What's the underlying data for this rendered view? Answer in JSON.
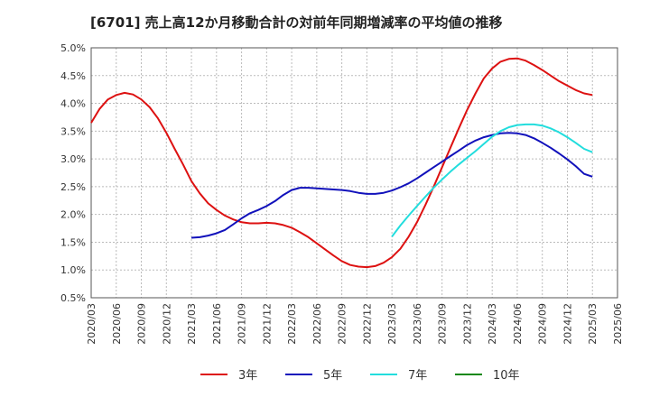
{
  "chart_data": {
    "type": "line",
    "title": "[6701]  売上高12か月移動合計の対前年同期増減率の平均値の推移",
    "xlabel": "",
    "ylabel": "",
    "ylim": [
      0.5,
      5.0
    ],
    "yticks": [
      "0.5%",
      "1.0%",
      "1.5%",
      "2.0%",
      "2.5%",
      "3.0%",
      "3.5%",
      "4.0%",
      "4.5%",
      "5.0%"
    ],
    "xticks": [
      "2020/03",
      "2020/06",
      "2020/09",
      "2020/12",
      "2021/03",
      "2021/06",
      "2021/09",
      "2021/12",
      "2022/03",
      "2022/06",
      "2022/09",
      "2022/12",
      "2023/03",
      "2023/06",
      "2023/09",
      "2023/12",
      "2024/03",
      "2024/06",
      "2024/09",
      "2024/12",
      "2025/03",
      "2025/06"
    ],
    "grid": true,
    "legend_position": "bottom",
    "series": [
      {
        "name": "3年",
        "color": "#dd1111",
        "points": [
          [
            "2020/03",
            3.65
          ],
          [
            "2020/04",
            3.9
          ],
          [
            "2020/05",
            4.07
          ],
          [
            "2020/06",
            4.15
          ],
          [
            "2020/07",
            4.19
          ],
          [
            "2020/08",
            4.16
          ],
          [
            "2020/09",
            4.07
          ],
          [
            "2020/10",
            3.93
          ],
          [
            "2020/11",
            3.73
          ],
          [
            "2020/12",
            3.47
          ],
          [
            "2021/01",
            3.18
          ],
          [
            "2021/02",
            2.9
          ],
          [
            "2021/03",
            2.6
          ],
          [
            "2021/04",
            2.38
          ],
          [
            "2021/05",
            2.2
          ],
          [
            "2021/06",
            2.08
          ],
          [
            "2021/07",
            1.98
          ],
          [
            "2021/08",
            1.91
          ],
          [
            "2021/09",
            1.86
          ],
          [
            "2021/10",
            1.84
          ],
          [
            "2021/11",
            1.84
          ],
          [
            "2021/12",
            1.85
          ],
          [
            "2022/01",
            1.84
          ],
          [
            "2022/02",
            1.81
          ],
          [
            "2022/03",
            1.76
          ],
          [
            "2022/04",
            1.68
          ],
          [
            "2022/05",
            1.59
          ],
          [
            "2022/06",
            1.48
          ],
          [
            "2022/07",
            1.37
          ],
          [
            "2022/08",
            1.26
          ],
          [
            "2022/09",
            1.16
          ],
          [
            "2022/10",
            1.09
          ],
          [
            "2022/11",
            1.06
          ],
          [
            "2022/12",
            1.05
          ],
          [
            "2023/01",
            1.07
          ],
          [
            "2023/02",
            1.13
          ],
          [
            "2023/03",
            1.23
          ],
          [
            "2023/04",
            1.38
          ],
          [
            "2023/05",
            1.6
          ],
          [
            "2023/06",
            1.86
          ],
          [
            "2023/07",
            2.17
          ],
          [
            "2023/08",
            2.5
          ],
          [
            "2023/09",
            2.85
          ],
          [
            "2023/10",
            3.2
          ],
          [
            "2023/11",
            3.55
          ],
          [
            "2023/12",
            3.88
          ],
          [
            "2024/01",
            4.18
          ],
          [
            "2024/02",
            4.45
          ],
          [
            "2024/03",
            4.63
          ],
          [
            "2024/04",
            4.75
          ],
          [
            "2024/05",
            4.8
          ],
          [
            "2024/06",
            4.81
          ],
          [
            "2024/07",
            4.77
          ],
          [
            "2024/08",
            4.69
          ],
          [
            "2024/09",
            4.6
          ],
          [
            "2024/10",
            4.5
          ],
          [
            "2024/11",
            4.4
          ],
          [
            "2024/12",
            4.32
          ],
          [
            "2025/01",
            4.24
          ],
          [
            "2025/02",
            4.18
          ],
          [
            "2025/03",
            4.15
          ]
        ]
      },
      {
        "name": "5年",
        "color": "#1111bb",
        "points": [
          [
            "2021/03",
            1.58
          ],
          [
            "2021/04",
            1.59
          ],
          [
            "2021/05",
            1.62
          ],
          [
            "2021/06",
            1.66
          ],
          [
            "2021/07",
            1.72
          ],
          [
            "2021/08",
            1.82
          ],
          [
            "2021/09",
            1.93
          ],
          [
            "2021/10",
            2.02
          ],
          [
            "2021/11",
            2.08
          ],
          [
            "2021/12",
            2.15
          ],
          [
            "2022/01",
            2.24
          ],
          [
            "2022/02",
            2.35
          ],
          [
            "2022/03",
            2.44
          ],
          [
            "2022/04",
            2.48
          ],
          [
            "2022/05",
            2.48
          ],
          [
            "2022/06",
            2.47
          ],
          [
            "2022/07",
            2.46
          ],
          [
            "2022/08",
            2.45
          ],
          [
            "2022/09",
            2.44
          ],
          [
            "2022/10",
            2.42
          ],
          [
            "2022/11",
            2.39
          ],
          [
            "2022/12",
            2.37
          ],
          [
            "2023/01",
            2.37
          ],
          [
            "2023/02",
            2.39
          ],
          [
            "2023/03",
            2.43
          ],
          [
            "2023/04",
            2.49
          ],
          [
            "2023/05",
            2.56
          ],
          [
            "2023/06",
            2.65
          ],
          [
            "2023/07",
            2.75
          ],
          [
            "2023/08",
            2.85
          ],
          [
            "2023/09",
            2.95
          ],
          [
            "2023/10",
            3.05
          ],
          [
            "2023/11",
            3.15
          ],
          [
            "2023/12",
            3.25
          ],
          [
            "2024/01",
            3.33
          ],
          [
            "2024/02",
            3.39
          ],
          [
            "2024/03",
            3.43
          ],
          [
            "2024/04",
            3.46
          ],
          [
            "2024/05",
            3.47
          ],
          [
            "2024/06",
            3.46
          ],
          [
            "2024/07",
            3.43
          ],
          [
            "2024/08",
            3.37
          ],
          [
            "2024/09",
            3.29
          ],
          [
            "2024/10",
            3.2
          ],
          [
            "2024/11",
            3.1
          ],
          [
            "2024/12",
            2.99
          ],
          [
            "2025/01",
            2.87
          ],
          [
            "2025/02",
            2.73
          ],
          [
            "2025/03",
            2.68
          ]
        ]
      },
      {
        "name": "7年",
        "color": "#22dddd",
        "points": [
          [
            "2023/03",
            1.6
          ],
          [
            "2023/04",
            1.8
          ],
          [
            "2023/05",
            1.98
          ],
          [
            "2023/06",
            2.15
          ],
          [
            "2023/07",
            2.32
          ],
          [
            "2023/08",
            2.48
          ],
          [
            "2023/09",
            2.63
          ],
          [
            "2023/10",
            2.77
          ],
          [
            "2023/11",
            2.9
          ],
          [
            "2023/12",
            3.02
          ],
          [
            "2024/01",
            3.14
          ],
          [
            "2024/02",
            3.27
          ],
          [
            "2024/03",
            3.4
          ],
          [
            "2024/04",
            3.5
          ],
          [
            "2024/05",
            3.57
          ],
          [
            "2024/06",
            3.61
          ],
          [
            "2024/07",
            3.62
          ],
          [
            "2024/08",
            3.62
          ],
          [
            "2024/09",
            3.6
          ],
          [
            "2024/10",
            3.55
          ],
          [
            "2024/11",
            3.48
          ],
          [
            "2024/12",
            3.39
          ],
          [
            "2025/01",
            3.29
          ],
          [
            "2025/02",
            3.18
          ],
          [
            "2025/03",
            3.12
          ]
        ]
      },
      {
        "name": "10年",
        "color": "#118811",
        "points": []
      }
    ]
  }
}
